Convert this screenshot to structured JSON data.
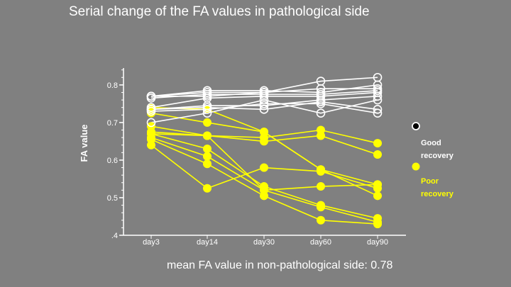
{
  "chart_data": {
    "type": "line",
    "title": "Serial change of the FA values in pathological side",
    "xlabel": "",
    "ylabel": "FA value",
    "categories": [
      "day3",
      "day14",
      "day30",
      "day60",
      "day90"
    ],
    "y_tick_labels": [
      "0.8",
      "0.7",
      "0.6",
      "0.5",
      ".4"
    ],
    "y_tick_values": [
      0.8,
      0.7,
      0.6,
      0.5,
      0.4
    ],
    "ylim": [
      0.4,
      0.845
    ],
    "legend_position": "right",
    "annotation": "mean FA value in non-pathological side: 0.78",
    "colors": {
      "good": "#ffffff",
      "poor": "#ffff00",
      "background": "#808080"
    },
    "legend": [
      {
        "label_line1": "Good",
        "label_line2": "recovery",
        "group": "good"
      },
      {
        "label_line1": "Poor",
        "label_line2": "recovery",
        "group": "poor"
      }
    ],
    "series": [
      {
        "name": "good-1",
        "group": "good",
        "values": [
          0.77,
          0.785,
          0.785,
          0.78,
          0.8
        ]
      },
      {
        "name": "good-2",
        "group": "good",
        "values": [
          0.77,
          0.78,
          0.78,
          0.79,
          0.79
        ]
      },
      {
        "name": "good-3",
        "group": "good",
        "values": [
          0.765,
          0.775,
          0.775,
          0.775,
          0.785
        ]
      },
      {
        "name": "good-4",
        "group": "good",
        "values": [
          0.77,
          0.77,
          0.78,
          0.81,
          0.82
        ]
      },
      {
        "name": "good-5",
        "group": "good",
        "values": [
          0.74,
          0.765,
          0.77,
          0.77,
          0.78
        ]
      },
      {
        "name": "good-6",
        "group": "good",
        "values": [
          0.735,
          0.745,
          0.745,
          0.76,
          0.77
        ]
      },
      {
        "name": "good-7",
        "group": "good",
        "values": [
          0.735,
          0.74,
          0.735,
          0.755,
          0.735
        ]
      },
      {
        "name": "good-8",
        "group": "good",
        "values": [
          0.73,
          0.735,
          0.75,
          0.75,
          0.725
        ]
      },
      {
        "name": "good-9",
        "group": "good",
        "values": [
          0.7,
          0.725,
          0.76,
          0.725,
          0.76
        ]
      },
      {
        "name": "poor-1",
        "group": "poor",
        "values": [
          0.74,
          0.735,
          0.675,
          0.575,
          0.505
        ]
      },
      {
        "name": "poor-2",
        "group": "poor",
        "values": [
          0.725,
          0.7,
          0.675,
          0.575,
          0.535
        ]
      },
      {
        "name": "poor-3",
        "group": "poor",
        "values": [
          0.69,
          0.665,
          0.66,
          0.68,
          0.645
        ]
      },
      {
        "name": "poor-4",
        "group": "poor",
        "values": [
          0.675,
          0.665,
          0.65,
          0.665,
          0.615
        ]
      },
      {
        "name": "poor-5",
        "group": "poor",
        "values": [
          0.67,
          0.63,
          0.53,
          0.48,
          0.445
        ]
      },
      {
        "name": "poor-6",
        "group": "poor",
        "values": [
          0.66,
          0.61,
          0.52,
          0.475,
          0.435
        ]
      },
      {
        "name": "poor-7",
        "group": "poor",
        "values": [
          0.655,
          0.59,
          0.505,
          0.44,
          0.43
        ]
      },
      {
        "name": "poor-8",
        "group": "poor",
        "values": [
          0.64,
          0.525,
          0.58,
          0.57,
          0.525
        ]
      },
      {
        "name": "poor-9",
        "group": "poor",
        "values": [
          0.67,
          0.665,
          0.52,
          0.53,
          0.535
        ]
      }
    ]
  }
}
